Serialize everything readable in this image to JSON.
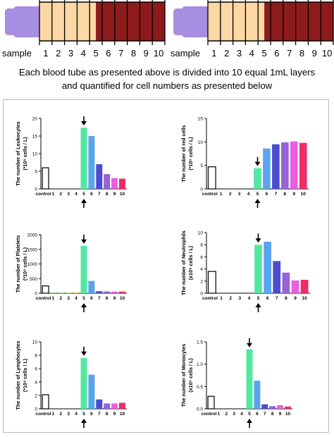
{
  "tubes": {
    "label": "sample",
    "layers": [
      "1",
      "2",
      "3",
      "4",
      "5",
      "6",
      "7",
      "8",
      "9",
      "10"
    ],
    "colors": {
      "cap": "#a78ee0",
      "plasma": "#fbd8a4",
      "blood": "#8e1b1b",
      "outline": "#000000"
    }
  },
  "caption": {
    "line1": "Each blood tube as presented above is divided into 10 equal 1mL layers",
    "line2": "and quantified for cell numbers as presented below"
  },
  "bar_colors": [
    "#ffffff",
    "#78be74",
    "#9fd07a",
    "#c6e07e",
    "#f2d27a",
    "#52e8a0",
    "#5aa4ef",
    "#4b4ccd",
    "#9763d6",
    "#e860df",
    "#ee2c66"
  ],
  "chart_data": [
    {
      "type": "bar",
      "ylabel": "The number of Leukocytes (*10⁹ cells / L)",
      "ylabel_lines": [
        "The number of Leukocytes",
        "(*10⁹ cells / L)"
      ],
      "categories": [
        "control",
        "1",
        "2",
        "3",
        "4",
        "5",
        "6",
        "7",
        "8",
        "9",
        "10"
      ],
      "values": [
        6,
        0,
        0,
        0,
        0,
        17.4,
        15,
        7,
        4.2,
        3.1,
        2.9
      ],
      "ylim": [
        0,
        20
      ],
      "yticks": [
        "0",
        "5",
        "10",
        "15",
        "20"
      ],
      "arrow_at": "5"
    },
    {
      "type": "bar",
      "ylabel": "The number of red cells (*10⁹ cells / L)",
      "ylabel_lines": [
        "The number of red cells",
        "(*10⁹ cells / L)"
      ],
      "categories": [
        "control",
        "1",
        "2",
        "3",
        "4",
        "5",
        "6",
        "7",
        "8",
        "9",
        "10"
      ],
      "values": [
        4.7,
        0,
        0,
        0,
        0,
        4.4,
        8.6,
        9.5,
        9.9,
        10.1,
        9.8
      ],
      "ylim": [
        0,
        15
      ],
      "yticks": [
        "0",
        "5",
        "10",
        "15"
      ],
      "arrow_at": "5"
    },
    {
      "type": "bar",
      "ylabel": "The number of Platelets (*10⁹ cells / L)",
      "ylabel_lines": [
        "The number of Platelets",
        "(*10⁹ cells / L)"
      ],
      "categories": [
        "control",
        "1",
        "2",
        "3",
        "4",
        "5",
        "6",
        "7",
        "8",
        "9",
        "10"
      ],
      "values": [
        250,
        20,
        20,
        25,
        40,
        1620,
        420,
        70,
        60,
        55,
        55
      ],
      "ylim": [
        0,
        2000
      ],
      "yticks": [
        "0",
        "500",
        "1000",
        "1500",
        "2000"
      ],
      "arrow_at": "5"
    },
    {
      "type": "bar",
      "ylabel": "The number of Neutrophils (x10⁹ cells / L)",
      "ylabel_lines": [
        "The number of Neutrophils",
        "(x10⁹ cells / L)"
      ],
      "categories": [
        "control",
        "1",
        "2",
        "3",
        "4",
        "5",
        "6",
        "7",
        "8",
        "9",
        "10"
      ],
      "values": [
        3.6,
        0,
        0,
        0,
        0,
        8.0,
        8.5,
        5.3,
        3.4,
        2.1,
        2.2
      ],
      "ylim": [
        0,
        10
      ],
      "yticks": [
        "0",
        "2",
        "4",
        "6",
        "8",
        "10"
      ],
      "arrow_at": "5"
    },
    {
      "type": "bar",
      "ylabel": "The number of Lymphocytes (*10⁹ cells / L)",
      "ylabel_lines": [
        "The number of Lymphocytes",
        "(*10⁹ cells / L)"
      ],
      "categories": [
        "control",
        "1",
        "2",
        "3",
        "4",
        "5",
        "6",
        "7",
        "8",
        "9",
        "10"
      ],
      "values": [
        2.1,
        0,
        0,
        0,
        0,
        7.6,
        5.1,
        1.4,
        0.8,
        0.8,
        0.9
      ],
      "ylim": [
        0,
        10
      ],
      "yticks": [
        "0",
        "2",
        "4",
        "6",
        "8",
        "10"
      ],
      "arrow_at": "5"
    },
    {
      "type": "bar",
      "ylabel": "The number of Monocytes (x10⁹ cells / L)",
      "ylabel_lines": [
        "The number of Monocytes",
        "(x10⁹ cells / L)"
      ],
      "categories": [
        "control",
        "1",
        "2",
        "3",
        "4",
        "5",
        "6",
        "7",
        "8",
        "9",
        "10"
      ],
      "values": [
        0.28,
        0,
        0,
        0,
        0,
        1.33,
        0.63,
        0.1,
        0.06,
        0.08,
        0.05
      ],
      "ylim": [
        0,
        1.5
      ],
      "yticks": [
        "0.0",
        "0.5",
        "1.0",
        "1.5"
      ],
      "arrow_at": "5"
    }
  ]
}
